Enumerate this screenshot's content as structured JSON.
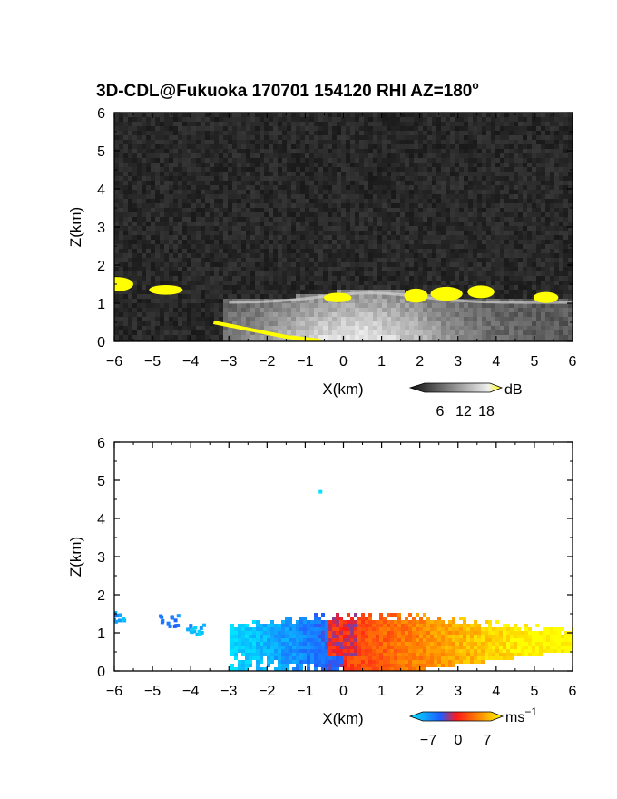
{
  "title": "3D-CDL@Fukuoka 170701 154120 RHI AZ=180",
  "title_degree_symbol": "o",
  "chart_data": [
    {
      "type": "heatmap",
      "panel": "snr",
      "xlabel": "X(km)",
      "ylabel": "Z(km)",
      "xlim": [
        -6,
        6
      ],
      "ylim": [
        0,
        6
      ],
      "xticks": [
        "−6",
        "−5",
        "−4",
        "−3",
        "−2",
        "−1",
        "0",
        "1",
        "2",
        "3",
        "4",
        "5",
        "6"
      ],
      "yticks": [
        "0",
        "1",
        "2",
        "3",
        "4",
        "5",
        "6"
      ],
      "colorbar": {
        "unit": "dB",
        "ticks": [
          "6",
          "12",
          "18"
        ],
        "colors": [
          "#000000",
          "#ffffff",
          "#ffff00"
        ]
      },
      "grid": false,
      "features": {
        "background": "noisy dark gray",
        "boundary_layer_top_km": 1.1,
        "yellow_patches": [
          {
            "x": -5.95,
            "z": 1.5
          },
          {
            "x": -4.65,
            "z": 1.35
          },
          {
            "x": -0.15,
            "z": 1.15
          },
          {
            "x": 1.9,
            "z": 1.2
          },
          {
            "x": 2.7,
            "z": 1.25
          },
          {
            "x": 3.6,
            "z": 1.3
          },
          {
            "x": 5.3,
            "z": 1.15
          }
        ]
      }
    },
    {
      "type": "heatmap",
      "panel": "radial_velocity",
      "xlabel": "X(km)",
      "ylabel": "Z(km)",
      "xlim": [
        -6,
        6
      ],
      "ylim": [
        0,
        6
      ],
      "xticks": [
        "−6",
        "−5",
        "−4",
        "−3",
        "−2",
        "−1",
        "0",
        "1",
        "2",
        "3",
        "4",
        "5",
        "6"
      ],
      "yticks": [
        "0",
        "1",
        "2",
        "3",
        "4",
        "5",
        "6"
      ],
      "colorbar": {
        "unit": "ms",
        "unit_exponent": "−1",
        "ticks": [
          "−7",
          "0",
          "7"
        ],
        "range": [
          -7,
          7
        ],
        "colors": [
          "#00e5ff",
          "#1f5cff",
          "#ff1a1a",
          "#ffff00"
        ]
      },
      "grid": false,
      "features": {
        "negative_velocity_region_x_km": [
          -3,
          0
        ],
        "positive_velocity_region_x_km": [
          0,
          6
        ],
        "layer_top_km": 1.5,
        "isolated_point": {
          "x": -0.6,
          "z": 4.7
        }
      }
    }
  ]
}
